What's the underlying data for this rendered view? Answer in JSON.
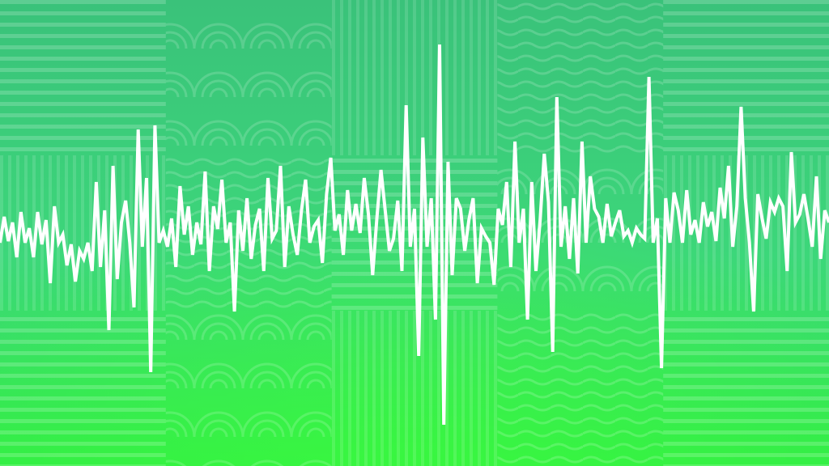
{
  "artwork": {
    "subject": "audio-waveform-illustration",
    "colors": {
      "background_top": "#3ac27a",
      "background_mid": "#3cd77a",
      "background_bottom": "#33ee45",
      "pattern_light": "#8fe8b4",
      "waveform": "#ffffff"
    }
  }
}
